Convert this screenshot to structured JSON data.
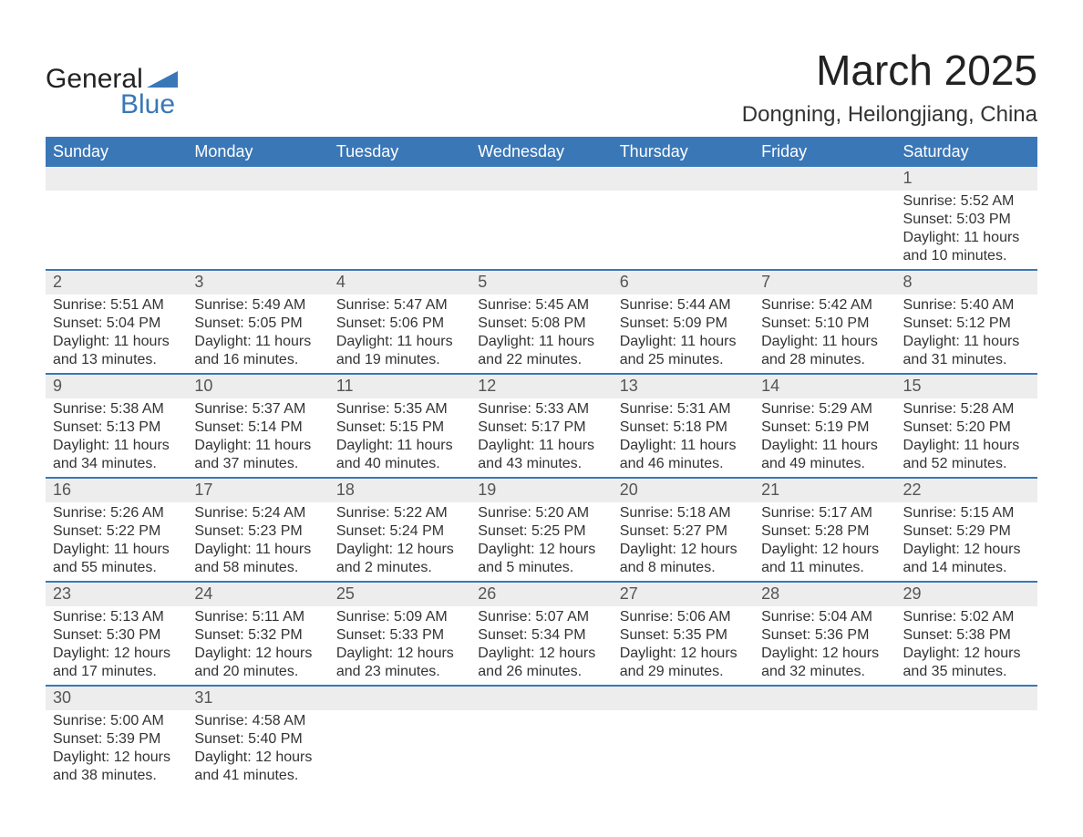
{
  "logo": {
    "text1": "General",
    "text2": "Blue"
  },
  "title": "March 2025",
  "location": "Dongning, Heilongjiang, China",
  "colors": {
    "header_bg": "#3a77b7",
    "header_text": "#ffffff",
    "daynum_bg": "#ededed",
    "row_border": "#3a77b7",
    "body_text": "#333333",
    "page_bg": "#ffffff"
  },
  "day_headers": [
    "Sunday",
    "Monday",
    "Tuesday",
    "Wednesday",
    "Thursday",
    "Friday",
    "Saturday"
  ],
  "weeks": [
    [
      {
        "day": "",
        "sunrise": "",
        "sunset": "",
        "daylight1": "",
        "daylight2": ""
      },
      {
        "day": "",
        "sunrise": "",
        "sunset": "",
        "daylight1": "",
        "daylight2": ""
      },
      {
        "day": "",
        "sunrise": "",
        "sunset": "",
        "daylight1": "",
        "daylight2": ""
      },
      {
        "day": "",
        "sunrise": "",
        "sunset": "",
        "daylight1": "",
        "daylight2": ""
      },
      {
        "day": "",
        "sunrise": "",
        "sunset": "",
        "daylight1": "",
        "daylight2": ""
      },
      {
        "day": "",
        "sunrise": "",
        "sunset": "",
        "daylight1": "",
        "daylight2": ""
      },
      {
        "day": "1",
        "sunrise": "Sunrise: 5:52 AM",
        "sunset": "Sunset: 5:03 PM",
        "daylight1": "Daylight: 11 hours",
        "daylight2": "and 10 minutes."
      }
    ],
    [
      {
        "day": "2",
        "sunrise": "Sunrise: 5:51 AM",
        "sunset": "Sunset: 5:04 PM",
        "daylight1": "Daylight: 11 hours",
        "daylight2": "and 13 minutes."
      },
      {
        "day": "3",
        "sunrise": "Sunrise: 5:49 AM",
        "sunset": "Sunset: 5:05 PM",
        "daylight1": "Daylight: 11 hours",
        "daylight2": "and 16 minutes."
      },
      {
        "day": "4",
        "sunrise": "Sunrise: 5:47 AM",
        "sunset": "Sunset: 5:06 PM",
        "daylight1": "Daylight: 11 hours",
        "daylight2": "and 19 minutes."
      },
      {
        "day": "5",
        "sunrise": "Sunrise: 5:45 AM",
        "sunset": "Sunset: 5:08 PM",
        "daylight1": "Daylight: 11 hours",
        "daylight2": "and 22 minutes."
      },
      {
        "day": "6",
        "sunrise": "Sunrise: 5:44 AM",
        "sunset": "Sunset: 5:09 PM",
        "daylight1": "Daylight: 11 hours",
        "daylight2": "and 25 minutes."
      },
      {
        "day": "7",
        "sunrise": "Sunrise: 5:42 AM",
        "sunset": "Sunset: 5:10 PM",
        "daylight1": "Daylight: 11 hours",
        "daylight2": "and 28 minutes."
      },
      {
        "day": "8",
        "sunrise": "Sunrise: 5:40 AM",
        "sunset": "Sunset: 5:12 PM",
        "daylight1": "Daylight: 11 hours",
        "daylight2": "and 31 minutes."
      }
    ],
    [
      {
        "day": "9",
        "sunrise": "Sunrise: 5:38 AM",
        "sunset": "Sunset: 5:13 PM",
        "daylight1": "Daylight: 11 hours",
        "daylight2": "and 34 minutes."
      },
      {
        "day": "10",
        "sunrise": "Sunrise: 5:37 AM",
        "sunset": "Sunset: 5:14 PM",
        "daylight1": "Daylight: 11 hours",
        "daylight2": "and 37 minutes."
      },
      {
        "day": "11",
        "sunrise": "Sunrise: 5:35 AM",
        "sunset": "Sunset: 5:15 PM",
        "daylight1": "Daylight: 11 hours",
        "daylight2": "and 40 minutes."
      },
      {
        "day": "12",
        "sunrise": "Sunrise: 5:33 AM",
        "sunset": "Sunset: 5:17 PM",
        "daylight1": "Daylight: 11 hours",
        "daylight2": "and 43 minutes."
      },
      {
        "day": "13",
        "sunrise": "Sunrise: 5:31 AM",
        "sunset": "Sunset: 5:18 PM",
        "daylight1": "Daylight: 11 hours",
        "daylight2": "and 46 minutes."
      },
      {
        "day": "14",
        "sunrise": "Sunrise: 5:29 AM",
        "sunset": "Sunset: 5:19 PM",
        "daylight1": "Daylight: 11 hours",
        "daylight2": "and 49 minutes."
      },
      {
        "day": "15",
        "sunrise": "Sunrise: 5:28 AM",
        "sunset": "Sunset: 5:20 PM",
        "daylight1": "Daylight: 11 hours",
        "daylight2": "and 52 minutes."
      }
    ],
    [
      {
        "day": "16",
        "sunrise": "Sunrise: 5:26 AM",
        "sunset": "Sunset: 5:22 PM",
        "daylight1": "Daylight: 11 hours",
        "daylight2": "and 55 minutes."
      },
      {
        "day": "17",
        "sunrise": "Sunrise: 5:24 AM",
        "sunset": "Sunset: 5:23 PM",
        "daylight1": "Daylight: 11 hours",
        "daylight2": "and 58 minutes."
      },
      {
        "day": "18",
        "sunrise": "Sunrise: 5:22 AM",
        "sunset": "Sunset: 5:24 PM",
        "daylight1": "Daylight: 12 hours",
        "daylight2": "and 2 minutes."
      },
      {
        "day": "19",
        "sunrise": "Sunrise: 5:20 AM",
        "sunset": "Sunset: 5:25 PM",
        "daylight1": "Daylight: 12 hours",
        "daylight2": "and 5 minutes."
      },
      {
        "day": "20",
        "sunrise": "Sunrise: 5:18 AM",
        "sunset": "Sunset: 5:27 PM",
        "daylight1": "Daylight: 12 hours",
        "daylight2": "and 8 minutes."
      },
      {
        "day": "21",
        "sunrise": "Sunrise: 5:17 AM",
        "sunset": "Sunset: 5:28 PM",
        "daylight1": "Daylight: 12 hours",
        "daylight2": "and 11 minutes."
      },
      {
        "day": "22",
        "sunrise": "Sunrise: 5:15 AM",
        "sunset": "Sunset: 5:29 PM",
        "daylight1": "Daylight: 12 hours",
        "daylight2": "and 14 minutes."
      }
    ],
    [
      {
        "day": "23",
        "sunrise": "Sunrise: 5:13 AM",
        "sunset": "Sunset: 5:30 PM",
        "daylight1": "Daylight: 12 hours",
        "daylight2": "and 17 minutes."
      },
      {
        "day": "24",
        "sunrise": "Sunrise: 5:11 AM",
        "sunset": "Sunset: 5:32 PM",
        "daylight1": "Daylight: 12 hours",
        "daylight2": "and 20 minutes."
      },
      {
        "day": "25",
        "sunrise": "Sunrise: 5:09 AM",
        "sunset": "Sunset: 5:33 PM",
        "daylight1": "Daylight: 12 hours",
        "daylight2": "and 23 minutes."
      },
      {
        "day": "26",
        "sunrise": "Sunrise: 5:07 AM",
        "sunset": "Sunset: 5:34 PM",
        "daylight1": "Daylight: 12 hours",
        "daylight2": "and 26 minutes."
      },
      {
        "day": "27",
        "sunrise": "Sunrise: 5:06 AM",
        "sunset": "Sunset: 5:35 PM",
        "daylight1": "Daylight: 12 hours",
        "daylight2": "and 29 minutes."
      },
      {
        "day": "28",
        "sunrise": "Sunrise: 5:04 AM",
        "sunset": "Sunset: 5:36 PM",
        "daylight1": "Daylight: 12 hours",
        "daylight2": "and 32 minutes."
      },
      {
        "day": "29",
        "sunrise": "Sunrise: 5:02 AM",
        "sunset": "Sunset: 5:38 PM",
        "daylight1": "Daylight: 12 hours",
        "daylight2": "and 35 minutes."
      }
    ],
    [
      {
        "day": "30",
        "sunrise": "Sunrise: 5:00 AM",
        "sunset": "Sunset: 5:39 PM",
        "daylight1": "Daylight: 12 hours",
        "daylight2": "and 38 minutes."
      },
      {
        "day": "31",
        "sunrise": "Sunrise: 4:58 AM",
        "sunset": "Sunset: 5:40 PM",
        "daylight1": "Daylight: 12 hours",
        "daylight2": "and 41 minutes."
      },
      {
        "day": "",
        "sunrise": "",
        "sunset": "",
        "daylight1": "",
        "daylight2": ""
      },
      {
        "day": "",
        "sunrise": "",
        "sunset": "",
        "daylight1": "",
        "daylight2": ""
      },
      {
        "day": "",
        "sunrise": "",
        "sunset": "",
        "daylight1": "",
        "daylight2": ""
      },
      {
        "day": "",
        "sunrise": "",
        "sunset": "",
        "daylight1": "",
        "daylight2": ""
      },
      {
        "day": "",
        "sunrise": "",
        "sunset": "",
        "daylight1": "",
        "daylight2": ""
      }
    ]
  ]
}
